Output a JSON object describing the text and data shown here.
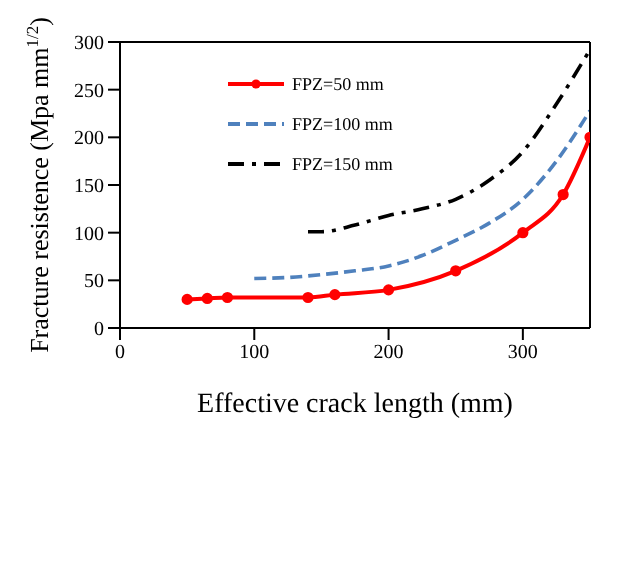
{
  "chart_data": {
    "type": "line",
    "xlabel": "Effective crack length (mm)",
    "ylabel": "Fracture resistence (Mpa mm$^{1/2}$)",
    "xlim": [
      0,
      350
    ],
    "xticks": [
      0,
      100,
      200,
      300
    ],
    "ylim": [
      0,
      300
    ],
    "yticks": [
      0,
      50,
      100,
      150,
      200,
      250,
      300
    ],
    "legend": "top left",
    "series": [
      {
        "name": "FPZ=50 mm",
        "color": "#ff0000",
        "marker": "circle",
        "line_style": "solid",
        "x": [
          50,
          65,
          80,
          140,
          160,
          200,
          250,
          300,
          330,
          350
        ],
        "values": [
          30,
          31,
          32,
          32,
          35,
          40,
          60,
          100,
          140,
          200
        ]
      },
      {
        "name": "FPZ=100 mm",
        "color": "#4f81bd",
        "marker": "none",
        "line_style": "dashed",
        "x": [
          100,
          125,
          150,
          175,
          200,
          225,
          250,
          275,
          300,
          325,
          350
        ],
        "values": [
          52,
          53,
          56,
          60,
          65,
          76,
          92,
          110,
          135,
          175,
          228
        ]
      },
      {
        "name": "FPZ=150 mm",
        "color": "#000000",
        "marker": "none",
        "line_style": "dashdot",
        "x": [
          140,
          150,
          175,
          200,
          225,
          250,
          275,
          300,
          325,
          350
        ],
        "values": [
          101,
          101,
          108,
          118,
          125,
          135,
          155,
          185,
          235,
          292
        ]
      }
    ]
  }
}
